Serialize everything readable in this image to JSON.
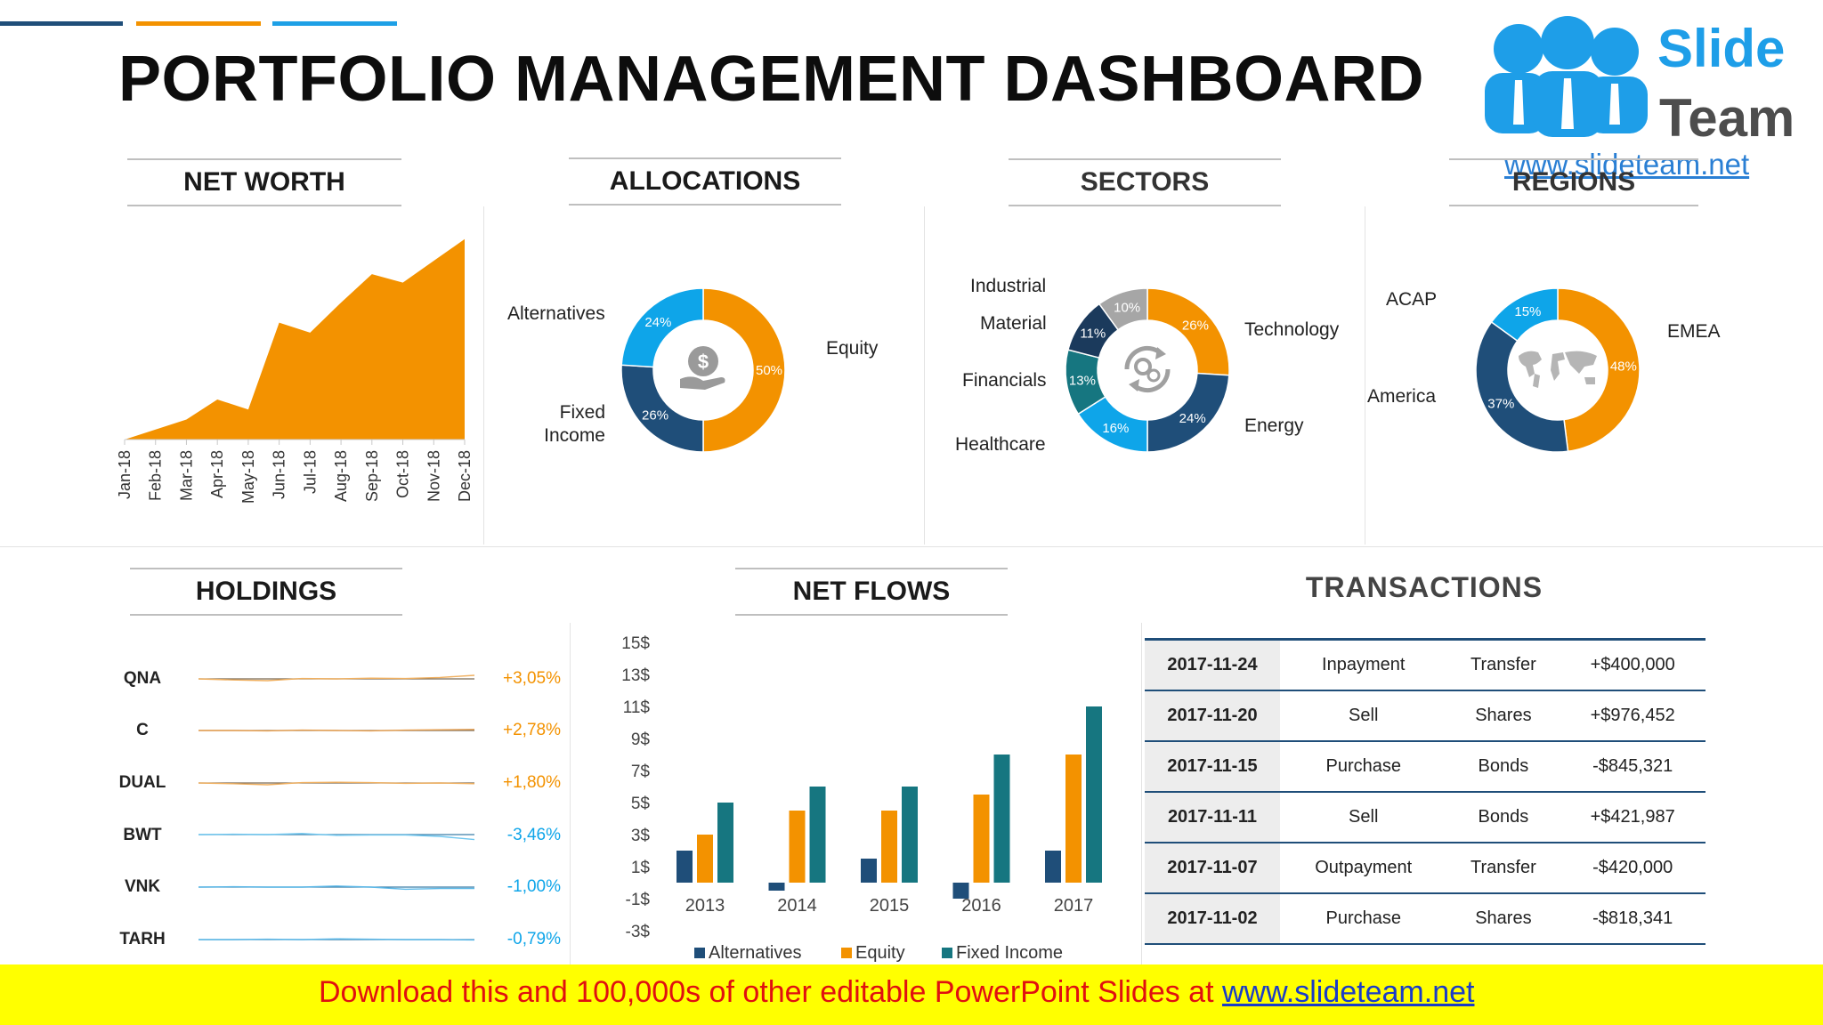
{
  "header": {
    "title": "PORTFOLIO MANAGEMENT DASHBOARD",
    "accent_lines": [
      "#1f4e79",
      "#f39200",
      "#1ea0e6"
    ]
  },
  "logo": {
    "line1": "Slide",
    "line2": "Team",
    "url": "www.slideteam.net"
  },
  "sections": {
    "net_worth": "NET WORTH",
    "allocations": "ALLOCATIONS",
    "sectors": "SECTORS",
    "regions": "REGIONS",
    "holdings": "HOLDINGS",
    "net_flows": "NET FLOWS",
    "transactions": "TRANSACTIONS"
  },
  "colors": {
    "orange": "#f39200",
    "navy": "#1f4e79",
    "sky": "#0ea5e9",
    "teal": "#167680",
    "gray": "#a6a6a6",
    "dark_navy": "#1b3a5c"
  },
  "chart_data": [
    {
      "id": "net_worth",
      "type": "area",
      "categories": [
        "Jan-18",
        "Feb-18",
        "Mar-18",
        "Apr-18",
        "May-18",
        "Jun-18",
        "Jul-18",
        "Aug-18",
        "Sep-18",
        "Oct-18",
        "Nov-18",
        "Dec-18"
      ],
      "values": [
        0,
        6,
        12,
        24,
        18,
        70,
        64,
        82,
        99,
        94,
        107,
        120
      ],
      "ylim": [
        0,
        130
      ],
      "color": "#f39200"
    },
    {
      "id": "allocations",
      "type": "pie",
      "center_icon": "dollar-hand-icon",
      "slices": [
        {
          "label": "Equity",
          "value": 50,
          "text": "50%",
          "color": "#f39200"
        },
        {
          "label": "Fixed Income",
          "value": 26,
          "text": "26%",
          "color": "#1f4e79"
        },
        {
          "label": "Alternatives",
          "value": 24,
          "text": "24%",
          "color": "#0ea5e9"
        }
      ]
    },
    {
      "id": "sectors",
      "type": "pie",
      "center_icon": "gears-cycle-icon",
      "slices": [
        {
          "label": "Technology",
          "value": 26,
          "text": "26%",
          "color": "#f39200"
        },
        {
          "label": "Energy",
          "value": 24,
          "text": "24%",
          "color": "#1f4e79"
        },
        {
          "label": "Healthcare",
          "value": 16,
          "text": "16%",
          "color": "#0ea5e9"
        },
        {
          "label": "Financials",
          "value": 13,
          "text": "13%",
          "color": "#167680"
        },
        {
          "label": "Material",
          "value": 11,
          "text": "11%",
          "color": "#1b3a5c"
        },
        {
          "label": "Industrial",
          "value": 10,
          "text": "10%",
          "color": "#a6a6a6"
        }
      ]
    },
    {
      "id": "regions",
      "type": "pie",
      "center_icon": "world-map-icon",
      "slices": [
        {
          "label": "EMEA",
          "value": 48,
          "text": "48%",
          "color": "#f39200"
        },
        {
          "label": "America",
          "value": 37,
          "text": "37%",
          "color": "#1f4e79"
        },
        {
          "label": "ACAP",
          "value": 15,
          "text": "15%",
          "color": "#0ea5e9"
        }
      ]
    },
    {
      "id": "holdings",
      "type": "line",
      "rows": [
        {
          "name": "QNA",
          "change": "+3,05%",
          "color": "#f0b060",
          "values": [
            0,
            -0.3,
            -0.5,
            0.1,
            0,
            0.2,
            0.1,
            0.4,
            1.0
          ]
        },
        {
          "name": "C",
          "change": "+2,78%",
          "color": "#e8a050",
          "values": [
            0,
            0,
            -0.1,
            0.1,
            0,
            -0.1,
            0.1,
            0.2,
            0.3
          ]
        },
        {
          "name": "DUAL",
          "change": "+1,80%",
          "color": "#f0b060",
          "values": [
            0,
            -0.2,
            -0.5,
            0.1,
            0.2,
            0.1,
            -0.1,
            0,
            -0.2
          ]
        },
        {
          "name": "BWT",
          "change": "-3,46%",
          "color": "#6ec6ef",
          "values": [
            0,
            0.1,
            0,
            0.3,
            -0.2,
            -0.1,
            -0.1,
            -0.5,
            -1.4
          ]
        },
        {
          "name": "VNK",
          "change": "-1,00%",
          "color": "#5bb8e8",
          "values": [
            0,
            0.1,
            0,
            0,
            0.3,
            0,
            -0.6,
            -0.4,
            -0.4
          ]
        },
        {
          "name": "TARH",
          "change": "-0,79%",
          "color": "#5bb8e8",
          "values": [
            0,
            0,
            0.1,
            0,
            0.2,
            0.1,
            0,
            0,
            -0.1
          ]
        }
      ],
      "positive_color": "#f39200",
      "negative_color": "#0ea5e9"
    },
    {
      "id": "net_flows",
      "type": "bar",
      "categories": [
        "2013",
        "2014",
        "2015",
        "2016",
        "2017"
      ],
      "yticks": [
        "15$",
        "13$",
        "11$",
        "9$",
        "7$",
        "5$",
        "3$",
        "1$",
        "-1$",
        "-3$"
      ],
      "ylim": [
        -3,
        15
      ],
      "series": [
        {
          "name": "Alternatives",
          "color": "#1f4e79",
          "values": [
            2,
            -0.5,
            1.5,
            -1,
            2
          ]
        },
        {
          "name": "Equity",
          "color": "#f39200",
          "values": [
            3,
            4.5,
            4.5,
            5.5,
            8
          ]
        },
        {
          "name": "Fixed Income",
          "color": "#167680",
          "values": [
            5,
            6,
            6,
            8,
            11
          ]
        }
      ]
    }
  ],
  "transactions": [
    {
      "date": "2017-11-24",
      "type": "Inpayment",
      "asset": "Transfer",
      "amount": "+$400,000"
    },
    {
      "date": "2017-11-20",
      "type": "Sell",
      "asset": "Shares",
      "amount": "+$976,452"
    },
    {
      "date": "2017-11-15",
      "type": "Purchase",
      "asset": "Bonds",
      "amount": "-$845,321"
    },
    {
      "date": "2017-11-11",
      "type": "Sell",
      "asset": "Bonds",
      "amount": "+$421,987"
    },
    {
      "date": "2017-11-07",
      "type": "Outpayment",
      "asset": "Transfer",
      "amount": "-$420,000"
    },
    {
      "date": "2017-11-02",
      "type": "Purchase",
      "asset": "Shares",
      "amount": "-$818,341"
    }
  ],
  "footer": {
    "text": "Download this and 100,000s of other editable PowerPoint Slides at ",
    "link": "www.slideteam.net"
  }
}
